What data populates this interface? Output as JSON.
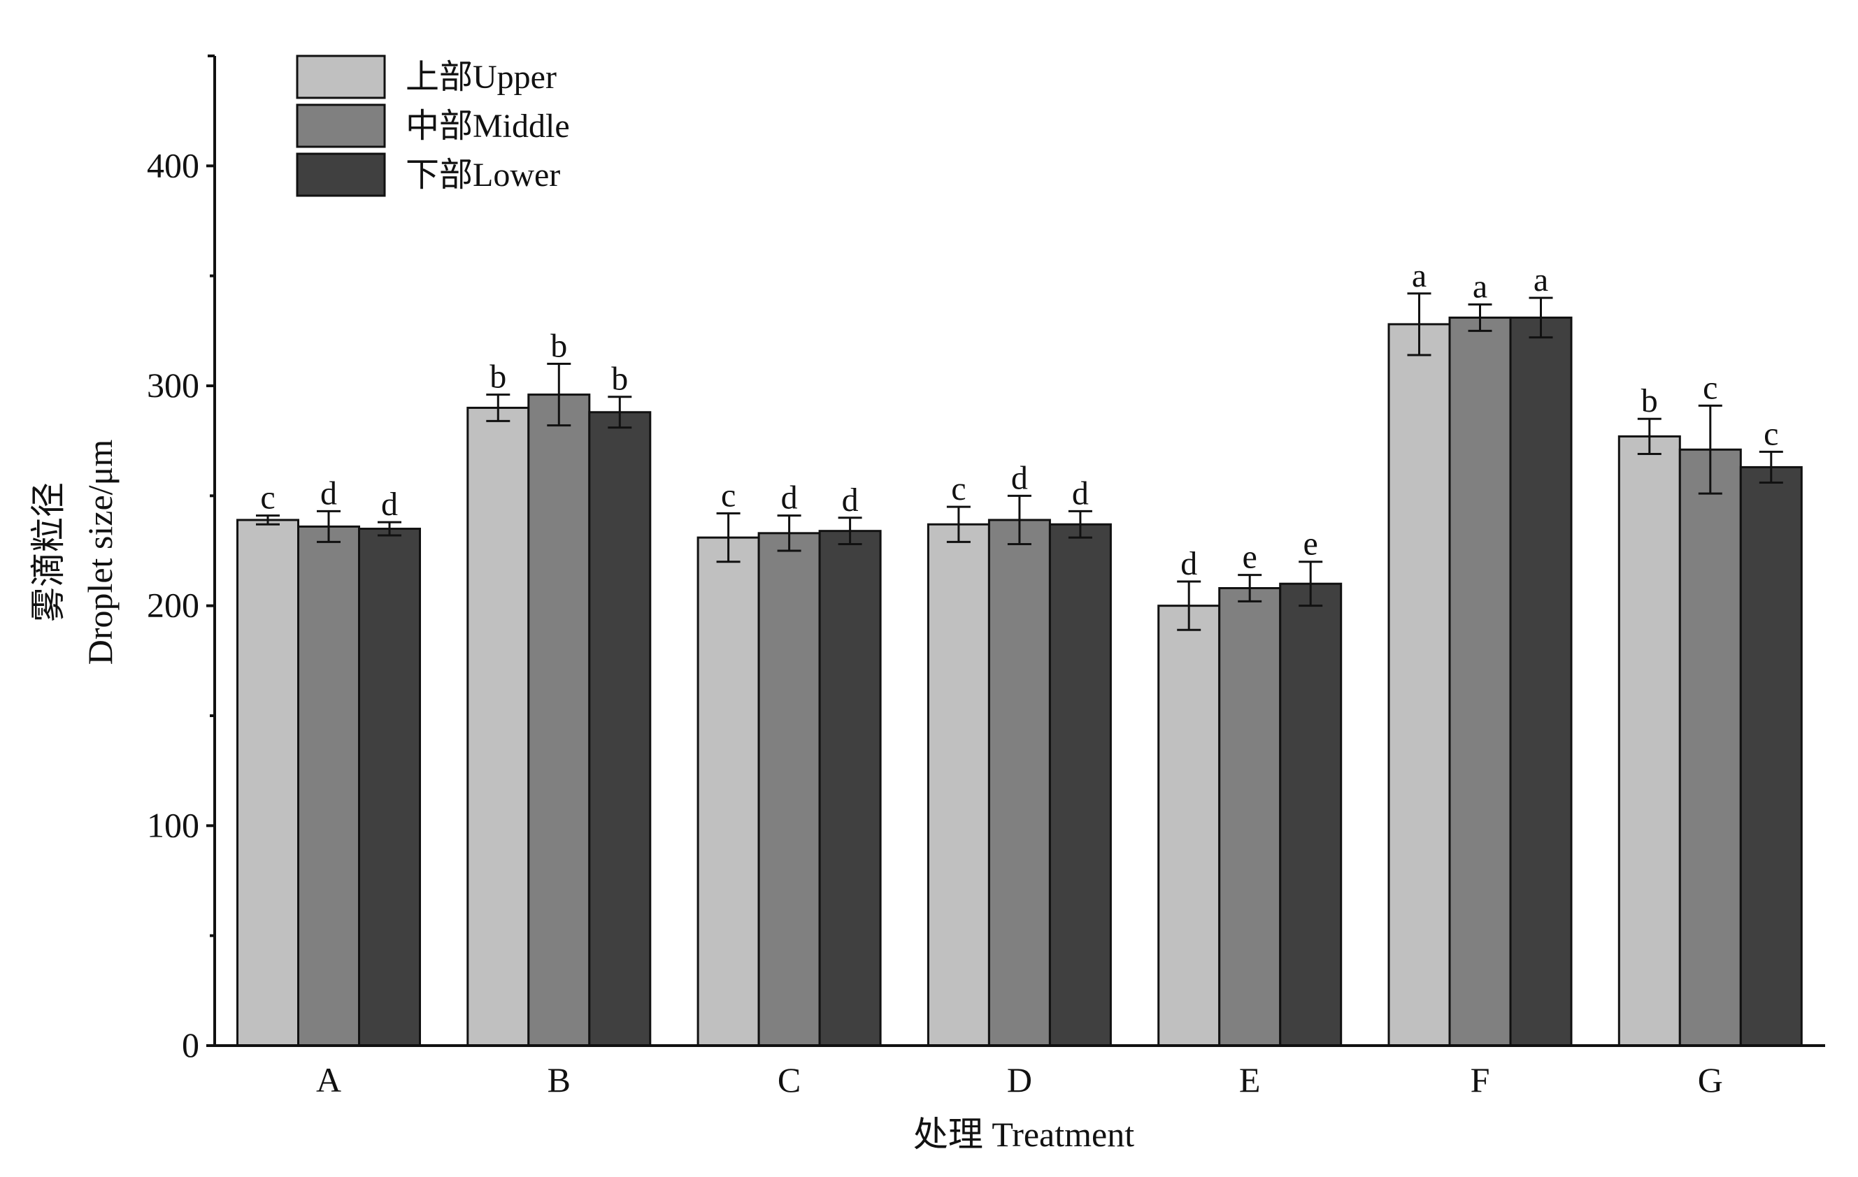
{
  "chart_data": {
    "type": "bar",
    "xlabel": "处理 Treatment",
    "ylabel_cn": "雾滴粒径",
    "ylabel": "Droplet size/μm",
    "ylim": [
      0,
      450
    ],
    "yticks": [
      0,
      100,
      200,
      300,
      400
    ],
    "categories": [
      "A",
      "B",
      "C",
      "D",
      "E",
      "F",
      "G"
    ],
    "legend_position": "top-left",
    "series": [
      {
        "name": "上部Upper",
        "color": "#c0c0c0",
        "values": [
          239,
          290,
          231,
          237,
          200,
          328,
          277
        ],
        "errors": [
          2,
          6,
          11,
          8,
          11,
          14,
          8
        ],
        "letters": [
          "c",
          "b",
          "c",
          "c",
          "d",
          "a",
          "b"
        ]
      },
      {
        "name": "中部Middle",
        "color": "#808080",
        "values": [
          236,
          296,
          233,
          239,
          208,
          331,
          271
        ],
        "errors": [
          7,
          14,
          8,
          11,
          6,
          6,
          20
        ],
        "letters": [
          "d",
          "b",
          "d",
          "d",
          "e",
          "a",
          "c"
        ]
      },
      {
        "name": "下部Lower",
        "color": "#404040",
        "values": [
          235,
          288,
          234,
          237,
          210,
          331,
          263
        ],
        "errors": [
          3,
          7,
          6,
          6,
          10,
          9,
          7
        ],
        "letters": [
          "d",
          "b",
          "d",
          "d",
          "e",
          "a",
          "c"
        ]
      }
    ]
  }
}
